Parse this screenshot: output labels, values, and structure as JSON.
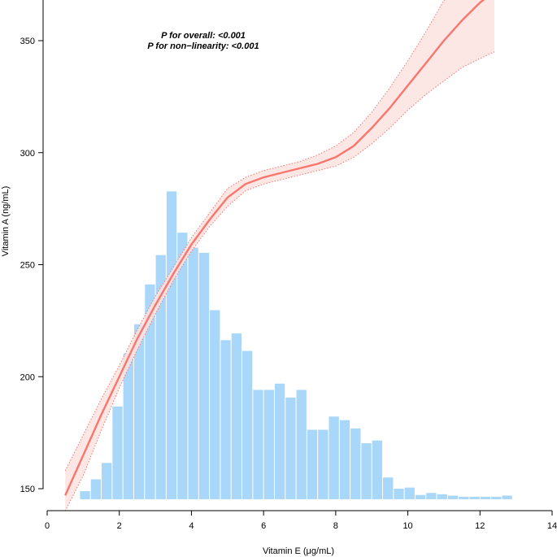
{
  "chart_data": {
    "type": "line",
    "xlabel": "Vitamin E (μg/mL)",
    "ylabel": "Vitamin A (ng/mL)",
    "xlim": [
      0,
      14
    ],
    "ylim": [
      140,
      370
    ],
    "x_ticks": [
      0,
      2,
      4,
      6,
      8,
      10,
      12,
      14
    ],
    "y_ticks": [
      150,
      200,
      250,
      300,
      350
    ],
    "annotations": [
      "P for overall: <0.001",
      "P for non−linearity: <0.001"
    ],
    "colors": {
      "curve": "#f8766d",
      "band": "#fde3e1",
      "histogram": "#a8d7f9"
    },
    "series": [
      {
        "x": [
          0.5,
          1.0,
          1.5,
          2.0,
          2.5,
          3.0,
          3.5,
          4.0,
          4.5,
          5.0,
          5.5,
          6.0,
          6.5,
          7.0,
          7.5,
          8.0,
          8.5,
          9.0,
          9.5,
          10.0,
          10.5,
          11.0,
          11.5,
          12.0,
          12.4
        ],
        "y": [
          147,
          165,
          183,
          200,
          217,
          232,
          246,
          259,
          270,
          280,
          286,
          289,
          291,
          293,
          295,
          298,
          303,
          311,
          320,
          330,
          340,
          350,
          359,
          367,
          372
        ],
        "lower": [
          140,
          156,
          176,
          195,
          212,
          228,
          243,
          256,
          267,
          276,
          283,
          286,
          288,
          290,
          292,
          294,
          298,
          304,
          311,
          319,
          326,
          332,
          338,
          342,
          345
        ],
        "upper": [
          158,
          174,
          190,
          205,
          221,
          236,
          249,
          262,
          273,
          284,
          289,
          292,
          294,
          296,
          299,
          303,
          309,
          318,
          329,
          341,
          354,
          368,
          372,
          372,
          372
        ]
      }
    ],
    "histogram": {
      "bin_width": 0.3,
      "bins": [
        [
          1.05,
          148.9
        ],
        [
          1.35,
          154.2
        ],
        [
          1.65,
          161.5
        ],
        [
          1.95,
          186.7
        ],
        [
          2.25,
          210.3
        ],
        [
          2.55,
          223.4
        ],
        [
          2.85,
          241.2
        ],
        [
          3.15,
          254.3
        ],
        [
          3.45,
          282.7
        ],
        [
          3.75,
          264.3
        ],
        [
          4.05,
          257.6
        ],
        [
          4.35,
          255.3
        ],
        [
          4.65,
          229.7
        ],
        [
          4.95,
          216.3
        ],
        [
          5.25,
          219.3
        ],
        [
          5.55,
          211.5
        ],
        [
          5.85,
          194.1
        ],
        [
          6.15,
          194.1
        ],
        [
          6.45,
          196.9
        ],
        [
          6.75,
          190.7
        ],
        [
          7.05,
          194.1
        ],
        [
          7.35,
          176.3
        ],
        [
          7.65,
          176.3
        ],
        [
          7.95,
          182.2
        ],
        [
          8.25,
          180.6
        ],
        [
          8.55,
          176.9
        ],
        [
          8.85,
          170.3
        ],
        [
          9.15,
          171.5
        ],
        [
          9.45,
          155.0
        ],
        [
          9.75,
          150.0
        ],
        [
          10.05,
          150.5
        ],
        [
          10.35,
          147.2
        ],
        [
          10.65,
          148.1
        ],
        [
          10.95,
          147.5
        ],
        [
          11.25,
          146.9
        ],
        [
          11.55,
          146.4
        ],
        [
          11.85,
          146.4
        ],
        [
          12.15,
          146.4
        ],
        [
          12.45,
          146.4
        ],
        [
          12.75,
          146.9
        ]
      ],
      "baseline": 145.3
    }
  }
}
